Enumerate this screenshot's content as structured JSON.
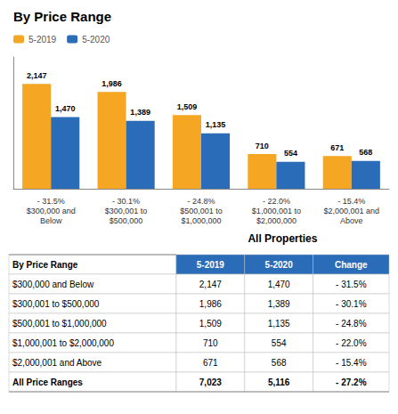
{
  "chart_data": [
    {
      "type": "bar",
      "title": "By Price Range",
      "categories": [
        "- 31.5%\n$300,000 and\nBelow",
        "- 30.1%\n$300,001 to\n$500,000",
        "- 24.8%\n$500,001 to\n$1,000,000",
        "- 22.0%\n$1,000,001 to\n$2,000,000",
        "- 15.4%\n$2,000,001 and\nAbove"
      ],
      "series": [
        {
          "name": "5-2019",
          "color": "#F5A623",
          "values": [
            2147,
            1986,
            1509,
            710,
            671
          ],
          "value_labels": [
            "2,147",
            "1,986",
            "1,509",
            "710",
            "671"
          ]
        },
        {
          "name": "5-2020",
          "color": "#2B6CB8",
          "values": [
            1470,
            1389,
            1135,
            554,
            568
          ],
          "value_labels": [
            "1,470",
            "1,389",
            "1,135",
            "554",
            "568"
          ]
        }
      ],
      "ylim": [
        0,
        2700
      ],
      "grid": false,
      "legend": "upper left",
      "data_labels": true,
      "tick_labels": "x"
    },
    {
      "type": "table",
      "title": "All Properties",
      "color": "#2B6CB8",
      "columns": [
        "By Price Range",
        "5-2019",
        "5-2020",
        "Change"
      ],
      "rows": [
        [
          "$300,000 and Below",
          "2,147",
          "1,470",
          "- 31.5%"
        ],
        [
          "$300,001 to $500,000",
          "1,986",
          "1,389",
          "- 30.1%"
        ],
        [
          "$500,001 to $1,000,000",
          "1,509",
          "1,135",
          "- 24.8%"
        ],
        [
          "$1,000,001 to $2,000,000",
          "710",
          "554",
          "- 22.0%"
        ],
        [
          "$2,000,001 and Above",
          "671",
          "568",
          "- 15.4%"
        ],
        [
          "All Price Ranges",
          "7,023",
          "5,116",
          "- 27.2%"
        ]
      ]
    }
  ]
}
